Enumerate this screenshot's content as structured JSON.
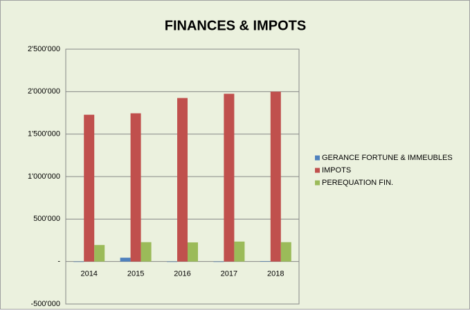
{
  "chart_data": {
    "type": "bar",
    "title": "FINANCES & IMPOTS",
    "categories": [
      "2014",
      "2015",
      "2016",
      "2017",
      "2018"
    ],
    "series": [
      {
        "name": "GERANCE FORTUNE & IMMEUBLES",
        "color": "#4f81bd",
        "values": [
          -5000,
          45000,
          -5000,
          -5000,
          5000
        ]
      },
      {
        "name": "IMPOTS",
        "color": "#c0504d",
        "values": [
          1728000,
          1745000,
          1925000,
          1975000,
          2000000
        ]
      },
      {
        "name": "PEREQUATION FIN.",
        "color": "#9bbb59",
        "values": [
          195000,
          228000,
          225000,
          235000,
          228000
        ]
      }
    ],
    "ylim": [
      -500000,
      2500000
    ],
    "yticks": [
      {
        "value": -500000,
        "label": "-500'000"
      },
      {
        "value": 0,
        "label": "-"
      },
      {
        "value": 500000,
        "label": "500'000"
      },
      {
        "value": 1000000,
        "label": "1'000'000"
      },
      {
        "value": 1500000,
        "label": "1'500'000"
      },
      {
        "value": 2000000,
        "label": "2'000'000"
      },
      {
        "value": 2500000,
        "label": "2'500'000"
      }
    ],
    "grid": true,
    "legend": "right"
  }
}
